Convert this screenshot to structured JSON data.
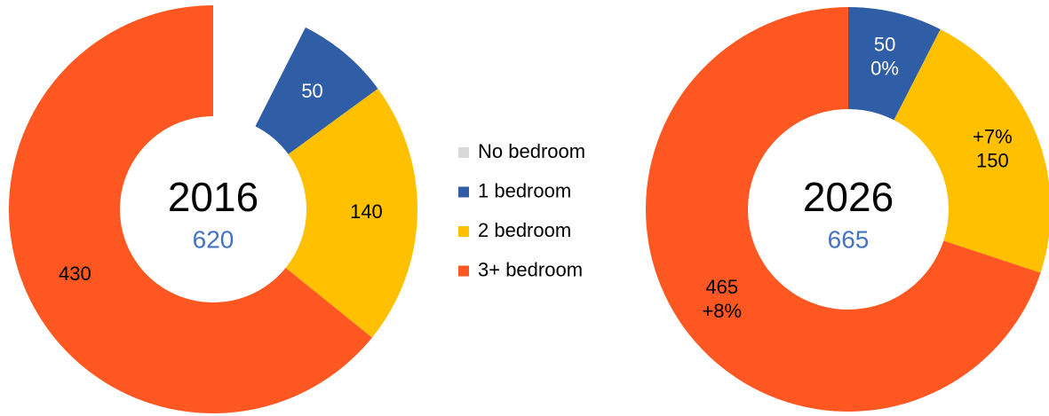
{
  "chart_data": [
    {
      "type": "donut",
      "title": "2016",
      "total_label": "620",
      "categories": [
        "No bedroom",
        "1 bedroom",
        "2 bedroom",
        "3+ bedroom"
      ],
      "values": [
        50,
        50,
        140,
        430
      ],
      "value_labels": [
        null,
        "50",
        "140",
        "430"
      ],
      "colors": [
        "#ffffff",
        "#2f5ea6",
        "#ffc000",
        "#fe5722"
      ],
      "label_colors": [
        "#000000",
        "#ffffff",
        "#000000",
        "#000000"
      ]
    },
    {
      "type": "donut",
      "title": "2026",
      "total_label": "665",
      "categories": [
        "1 bedroom",
        "2 bedroom",
        "3+ bedroom"
      ],
      "values": [
        50,
        150,
        465
      ],
      "change_labels": [
        "0%",
        "+7%",
        "+8%"
      ],
      "colors": [
        "#2f5ea6",
        "#ffc000",
        "#fe5722"
      ],
      "label_colors": [
        "#ffffff",
        "#000000",
        "#000000"
      ]
    }
  ],
  "legend": {
    "items": [
      {
        "name": "No bedroom",
        "color": "#d9d9d9"
      },
      {
        "name": "1 bedroom",
        "color": "#2f5ea6"
      },
      {
        "name": "2 bedroom",
        "color": "#ffc000"
      },
      {
        "name": "3+ bedroom",
        "color": "#fe5722"
      }
    ]
  }
}
